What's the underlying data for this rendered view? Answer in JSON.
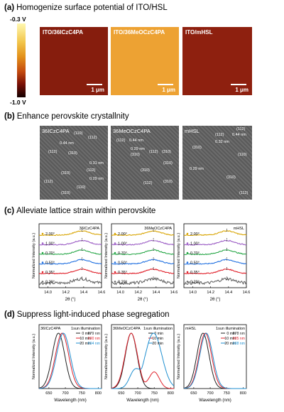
{
  "sections": {
    "a": {
      "letter": "(a)",
      "title": "Homogenize surface potential of ITO/HSL"
    },
    "b": {
      "letter": "(b)",
      "title": "Enhance perovskite crystallnity"
    },
    "c": {
      "letter": "(c)",
      "title": "Alleviate lattice strain within perovskite"
    },
    "d": {
      "letter": "(d)",
      "title": "Suppress light-induced phase segregation"
    }
  },
  "colorbar": {
    "top": "-0.3 V",
    "bottom": "-1.0 V"
  },
  "afm": [
    {
      "label": "ITO/36ICzC4PA",
      "scale": "1 μm",
      "color": "#8a1f0e"
    },
    {
      "label": "ITO/36MeOCzC4PA",
      "scale": "1 μm",
      "color": "#eda233"
    },
    {
      "label": "ITO/mHSL",
      "scale": "1 μm",
      "color": "#8e200f"
    }
  ],
  "tem": [
    {
      "label": "36ICzC4PA",
      "annotations": [
        "(110)",
        "(112)",
        "0.44 nm",
        "(112)",
        "(310)",
        "(310)",
        "(112)",
        "0.31 nm",
        "(112)",
        "0.29 nm",
        "(110)",
        "(310)"
      ]
    },
    {
      "label": "36MeOCzC4PA",
      "annotations": [
        "(112)",
        "0.44 nm",
        "0.29 nm",
        "(310)",
        "(112)",
        "(310)",
        "(310)",
        "(112)",
        "(310)",
        "(310)"
      ]
    },
    {
      "label": "mHSL",
      "annotations": [
        "(112)",
        "(112)",
        "0.44 nm",
        "0.32 nm",
        "(310)",
        "(110)",
        "0.29 nm",
        "(310)",
        "(112)"
      ]
    }
  ],
  "chart_data": [
    {
      "type": "line",
      "panel": "c",
      "label": "36ICzC4PA",
      "xlabel": "2θ (°)",
      "ylabel": "Normalized Intensity (a.u.)",
      "xlim": [
        13.9,
        14.6
      ],
      "xticks": [
        "14.0",
        "14.2",
        "14.4",
        "14.6"
      ],
      "series": [
        {
          "name": "2.00°",
          "color": "#d8a400",
          "peak": 14.38
        },
        {
          "name": "1.00°",
          "color": "#9a5bc4",
          "peak": 14.38
        },
        {
          "name": "0.70°",
          "color": "#2aa84a",
          "peak": 14.38
        },
        {
          "name": "0.50°",
          "color": "#1f6fe0",
          "peak": 14.38
        },
        {
          "name": "0.35°",
          "color": "#e0202a",
          "peak": 14.38
        },
        {
          "name": "0.20°",
          "color": "#666666",
          "peak": 14.38
        }
      ]
    },
    {
      "type": "line",
      "panel": "c",
      "label": "36MeOCzC4PA",
      "xlabel": "2θ (°)",
      "ylabel": "Normalized Intensity (a.u.)",
      "xlim": [
        13.9,
        14.6
      ],
      "xticks": [
        "14.0",
        "14.2",
        "14.4",
        "14.6"
      ],
      "series": [
        {
          "name": "2.00°",
          "color": "#d8a400",
          "peak": 14.37
        },
        {
          "name": "1.00°",
          "color": "#9a5bc4",
          "peak": 14.37
        },
        {
          "name": "0.70°",
          "color": "#2aa84a",
          "peak": 14.37
        },
        {
          "name": "0.50°",
          "color": "#1f6fe0",
          "peak": 14.37
        },
        {
          "name": "0.35°",
          "color": "#e0202a",
          "peak": 14.37
        },
        {
          "name": "0.20°",
          "color": "#666666",
          "peak": 14.37
        }
      ]
    },
    {
      "type": "line",
      "panel": "c",
      "label": "mHSL",
      "xlabel": "2θ (°)",
      "ylabel": "Normalized Intensity (a.u.)",
      "xlim": [
        13.9,
        14.6
      ],
      "xticks": [
        "14.0",
        "14.2",
        "14.4",
        "14.6"
      ],
      "series": [
        {
          "name": "2.00°",
          "color": "#d8a400",
          "peak": 14.38
        },
        {
          "name": "1.00°",
          "color": "#9a5bc4",
          "peak": 14.38
        },
        {
          "name": "0.70°",
          "color": "#2aa84a",
          "peak": 14.38
        },
        {
          "name": "0.50°",
          "color": "#1f6fe0",
          "peak": 14.38
        },
        {
          "name": "0.35°",
          "color": "#e0202a",
          "peak": 14.38
        },
        {
          "name": "0.20°",
          "color": "#666666",
          "peak": 14.38
        }
      ]
    },
    {
      "type": "line",
      "panel": "d",
      "label": "36ICzC4PA",
      "note": "1sun illumination",
      "xlabel": "Wavelength (nm)",
      "ylabel": "Normalized Intensity (a.u.)",
      "xlim": [
        620,
        810
      ],
      "xticks": [
        "650",
        "700",
        "750",
        "800"
      ],
      "series": [
        {
          "name": "0 min",
          "value": "679 nm",
          "color": "#222222",
          "peak": 679,
          "w": 34
        },
        {
          "name": "10 min",
          "value": "690 nm",
          "color": "#e0202a",
          "peak": 690,
          "w": 36
        },
        {
          "name": "20 min",
          "value": "694 nm",
          "color": "#1f8fd0",
          "peak": 694,
          "w": 37
        }
      ]
    },
    {
      "type": "line",
      "panel": "d",
      "label": "36MeOCzC4PA",
      "note": "1sun illumination",
      "xlabel": "Wavelength (nm)",
      "ylabel": "Normalized Intensity (a.u.)",
      "xlim": [
        620,
        810
      ],
      "xticks": [
        "650",
        "700",
        "750",
        "800"
      ],
      "series": [
        {
          "name": "0 min",
          "color": "#222222",
          "peak": 680,
          "w": 32
        },
        {
          "name": "10 min",
          "color": "#e0202a",
          "peak": 680,
          "w": 34,
          "second": 750
        },
        {
          "name": "20 min",
          "color": "#1f8fd0",
          "peak": 748,
          "w": 45,
          "second": 690
        }
      ]
    },
    {
      "type": "line",
      "panel": "d",
      "label": "mHSL",
      "note": "1sun illumination",
      "xlabel": "Wavelength (nm)",
      "ylabel": "Normalized Intensity (a.u.)",
      "xlim": [
        620,
        810
      ],
      "xticks": [
        "650",
        "700",
        "750",
        "800"
      ],
      "series": [
        {
          "name": "0 min",
          "value": "678 nm",
          "color": "#222222",
          "peak": 678,
          "w": 33
        },
        {
          "name": "10 min",
          "value": "685 nm",
          "color": "#e0202a",
          "peak": 685,
          "w": 34
        },
        {
          "name": "20 min",
          "value": "688 nm",
          "color": "#1f8fd0",
          "peak": 688,
          "w": 35
        }
      ]
    }
  ]
}
